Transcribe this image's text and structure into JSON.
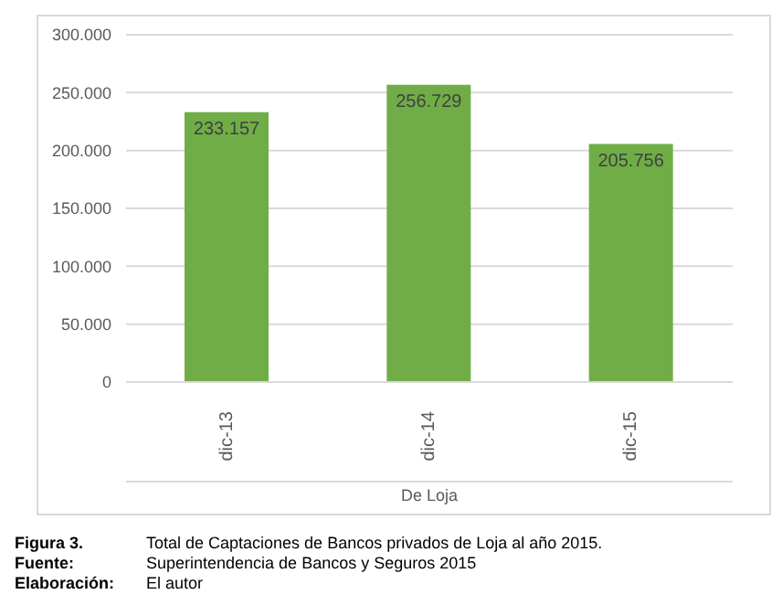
{
  "chart_data": {
    "type": "bar",
    "categories": [
      "dic-13",
      "dic-14",
      "dic-15"
    ],
    "values": [
      233157,
      256729,
      205756
    ],
    "value_labels": [
      "233.157",
      "256.729",
      "205.756"
    ],
    "color": "#70ad47",
    "xlabel": "De Loja",
    "ylim": [
      0,
      300000
    ],
    "yticks": [
      {
        "value": 0,
        "label": "0"
      },
      {
        "value": 50000,
        "label": "50.000"
      },
      {
        "value": 100000,
        "label": "100.000"
      },
      {
        "value": 150000,
        "label": "150.000"
      },
      {
        "value": 200000,
        "label": "200.000"
      },
      {
        "value": 250000,
        "label": "250.000"
      },
      {
        "value": 300000,
        "label": "300.000"
      }
    ],
    "grid": "y",
    "legend": false,
    "annotations": [
      "Figura 3.",
      "Total de Captaciones de Bancos privados de Loja al año 2015.",
      "Fuente:",
      "Superintendencia de Bancos y Seguros 2015",
      "Elaboración:",
      "El autor"
    ]
  }
}
